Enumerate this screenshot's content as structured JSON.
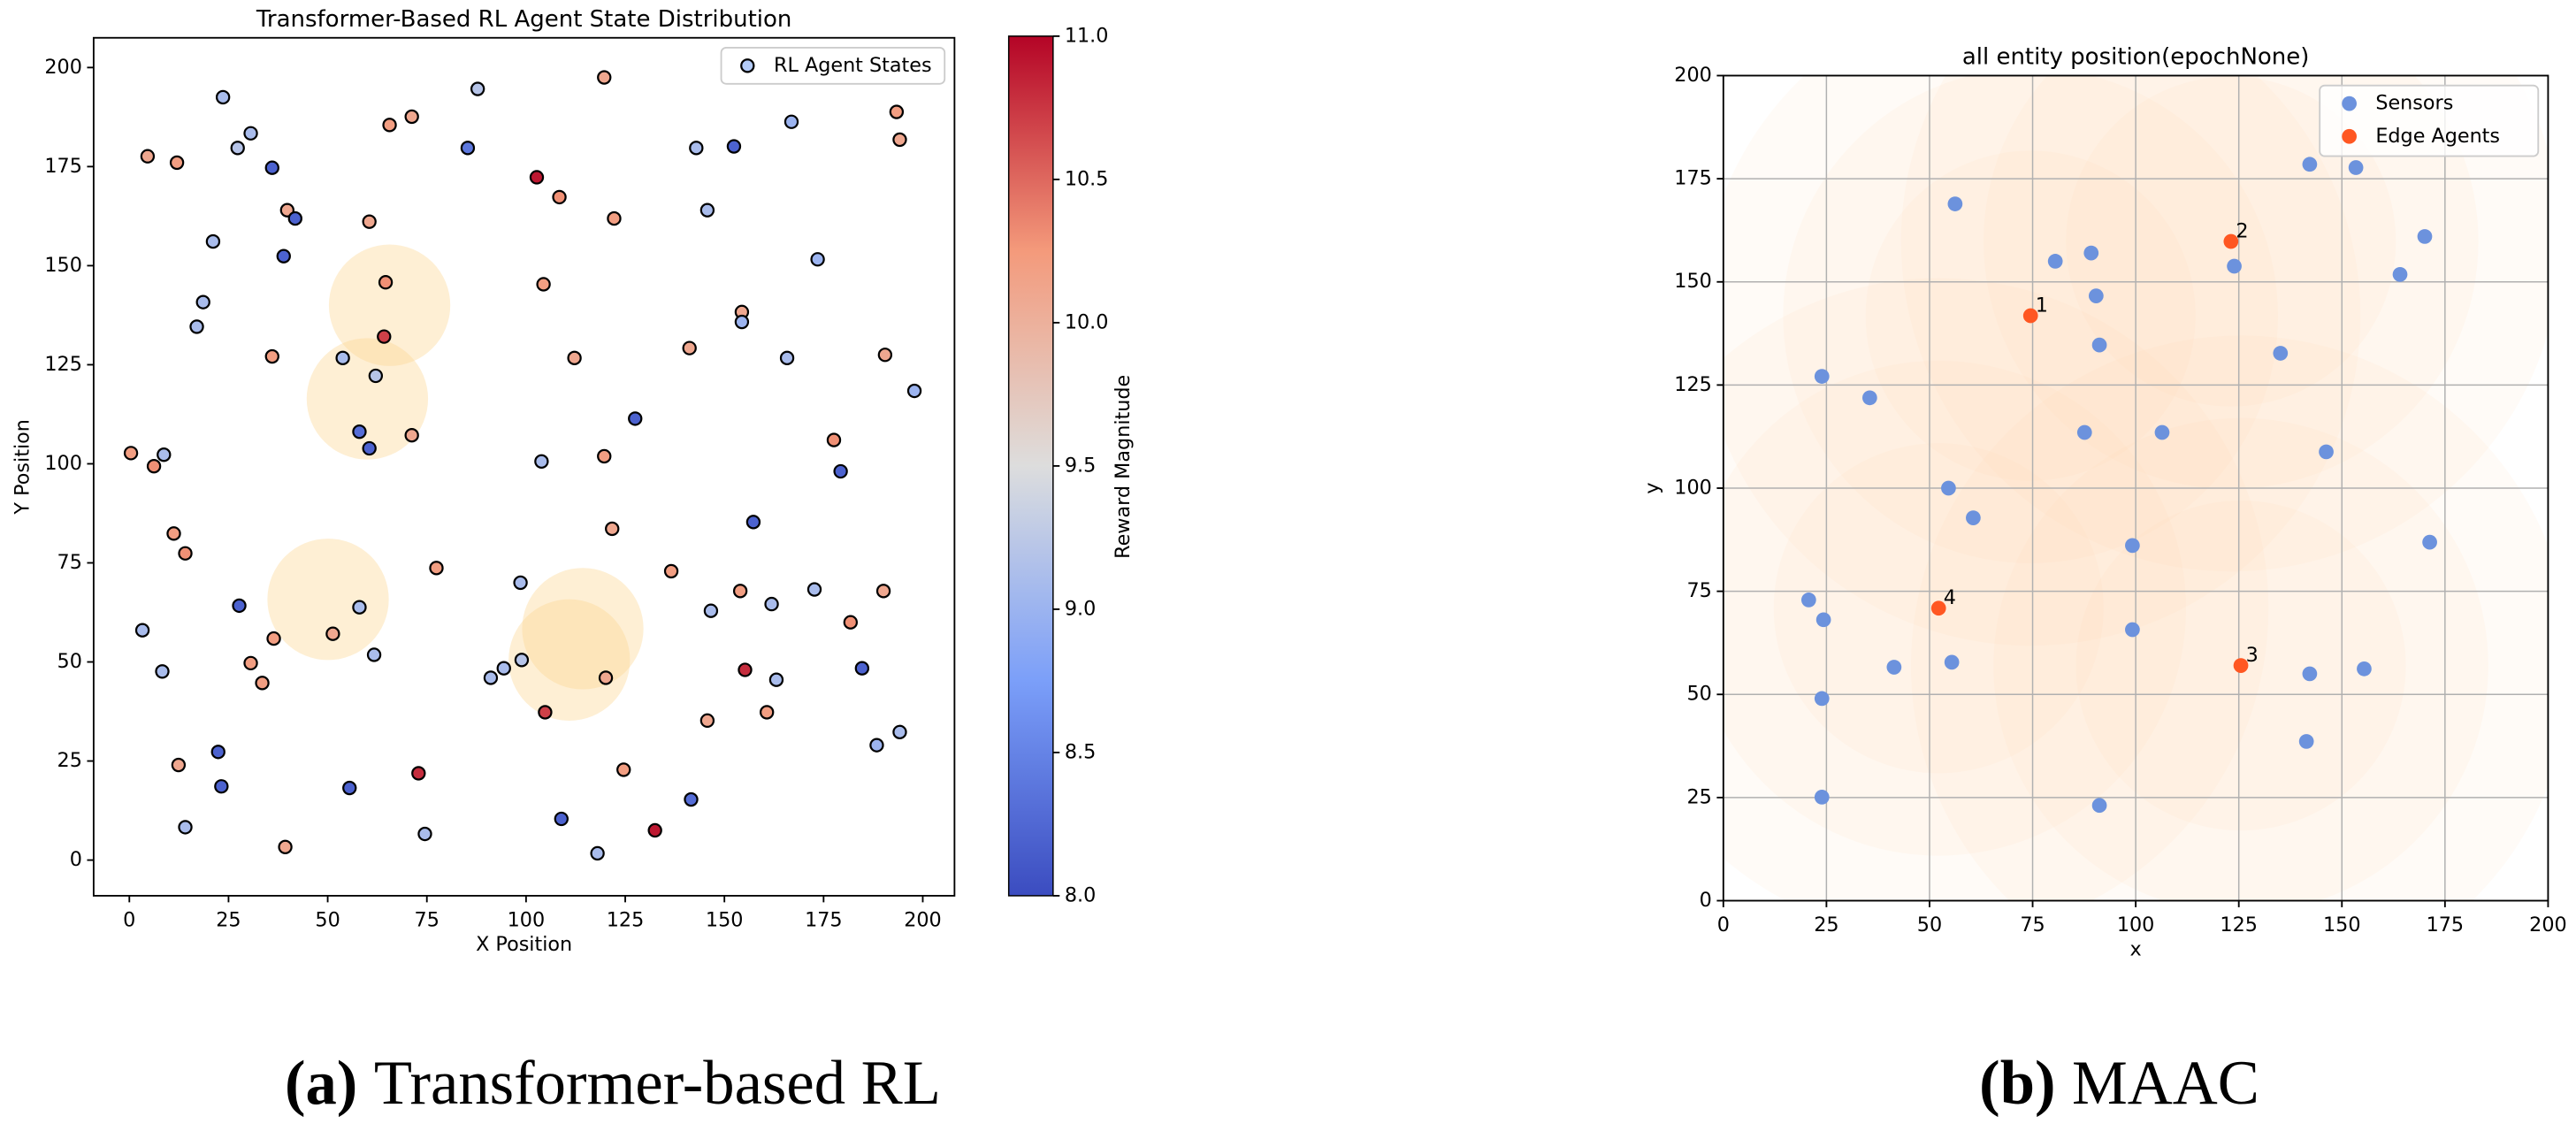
{
  "chart_data": [
    {
      "type": "scatter",
      "title": "Transformer-Based RL Agent State Distribution",
      "x_label": "X Position",
      "y_label": "Y Position",
      "xlim": [
        -9,
        208
      ],
      "ylim": [
        -9,
        207.5
      ],
      "xticks": [
        0,
        25,
        50,
        75,
        100,
        125,
        150,
        175,
        200
      ],
      "yticks": [
        0,
        25,
        50,
        75,
        100,
        125,
        150,
        175,
        200
      ],
      "grid": false,
      "legend": "upper right",
      "legend_label": "RL Agent States",
      "legend_marker_color": "#b3cbf7",
      "edge_color": "#000000",
      "x": [
        23.6,
        87.8,
        119.7,
        71.2,
        65.6,
        30.6,
        27.3,
        4.6,
        12.0,
        36,
        85.3,
        102.7,
        108.4,
        142.9,
        152.4,
        166.9,
        193.4,
        194.2,
        39.8,
        41.8,
        21.1,
        38.9,
        60.5,
        122.2,
        145.7,
        173.5,
        18.6,
        17,
        64.6,
        104.4,
        154.4,
        154.4,
        64.2,
        36,
        53.8,
        62.1,
        112.2,
        141.2,
        165.8,
        190.5,
        197.9,
        127.5,
        0.4,
        6.2,
        8.7,
        58,
        60.5,
        71.2,
        103.9,
        119.7,
        177.6,
        179.3,
        11.2,
        14.1,
        121.7,
        157.3,
        77.4,
        98.6,
        136.6,
        27.7,
        58,
        154,
        161.9,
        172.7,
        190.1,
        3.3,
        36.4,
        51.3,
        146.6,
        181.8,
        8.3,
        30.6,
        33.5,
        61.7,
        91.1,
        94.4,
        98.9,
        120.1,
        155.2,
        163.1,
        184.7,
        104.8,
        145.7,
        160.7,
        194.2,
        188.4,
        22.4,
        12.4,
        72.9,
        124.6,
        23.2,
        55.5,
        141.6,
        108.9,
        14.1,
        74.5,
        132.5,
        39.3,
        118
      ],
      "y": [
        192.5,
        194.6,
        197.5,
        187.6,
        185.5,
        183.4,
        179.7,
        177.6,
        176,
        174.7,
        179.7,
        172.3,
        167.3,
        179.7,
        180.1,
        186.3,
        188.8,
        181.8,
        164,
        161.9,
        156.1,
        152.4,
        161.1,
        161.9,
        164,
        151.6,
        140.8,
        134.6,
        145.8,
        145.3,
        138.3,
        135.8,
        132.1,
        127.1,
        126.7,
        122.2,
        126.7,
        129.2,
        126.7,
        127.5,
        118.4,
        111.4,
        102.7,
        99.4,
        102.3,
        108.1,
        103.9,
        107.2,
        100.6,
        101.9,
        106,
        98.1,
        82.4,
        77.4,
        83.6,
        85.3,
        73.7,
        70,
        72.9,
        64.2,
        63.8,
        67.9,
        64.6,
        68.3,
        67.9,
        58,
        55.9,
        57.1,
        62.9,
        60,
        47.6,
        49.7,
        44.7,
        51.8,
        46,
        48.4,
        50.5,
        46,
        48,
        45.5,
        48.4,
        37.3,
        35.2,
        37.3,
        32.3,
        29,
        27.3,
        24,
        21.9,
        22.8,
        18.6,
        18.2,
        15.3,
        10.4,
        8.3,
        6.6,
        7.5,
        3.3,
        1.7
      ],
      "color_values": [
        9.1,
        9.2,
        10.1,
        10.1,
        10.2,
        9.1,
        9.2,
        10.1,
        10.2,
        8.2,
        8.4,
        10.9,
        10.3,
        9.1,
        8.2,
        9.0,
        10.2,
        10.1,
        10.1,
        8.2,
        9.1,
        8.2,
        10.1,
        10.2,
        9.1,
        9.0,
        9.1,
        9.1,
        10.3,
        10.2,
        10.1,
        9.0,
        10.7,
        10.2,
        9.1,
        9.2,
        10.1,
        10.1,
        9.1,
        10.1,
        9.0,
        8.2,
        10.2,
        10.3,
        9.1,
        8.3,
        8.2,
        10.1,
        9.1,
        10.2,
        10.3,
        8.2,
        10.2,
        10.3,
        10.1,
        8.2,
        10.2,
        9.1,
        10.2,
        8.2,
        9.1,
        10.2,
        9.1,
        9.1,
        10.1,
        9.1,
        10.2,
        10.1,
        9.1,
        10.3,
        9.1,
        10.2,
        10.2,
        9.1,
        9.1,
        9.1,
        9.2,
        10.1,
        10.8,
        9.1,
        8.2,
        10.7,
        10.1,
        10.2,
        9.1,
        9.0,
        8.2,
        10.1,
        10.8,
        10.2,
        8.2,
        8.2,
        8.3,
        8.2,
        9.1,
        9.1,
        10.9,
        10.1,
        9.1
      ],
      "regions": {
        "x": [
          65.6,
          60,
          50.1,
          114.3,
          110.9
        ],
        "y": [
          140,
          116.4,
          65.8,
          58.4,
          50.5
        ],
        "r": [
          15.3,
          15.3,
          15.3,
          15.3,
          15.3
        ],
        "color": "#fcd694"
      },
      "colorbar": {
        "label": "Reward Magnitude",
        "cmap": "coolwarm",
        "clim": [
          8,
          11
        ],
        "ticks": [
          {
            "value": 8,
            "label": "8.0"
          },
          {
            "value": 8.5,
            "label": "8.5"
          },
          {
            "value": 9,
            "label": "9.0"
          },
          {
            "value": 9.5,
            "label": "9.5"
          },
          {
            "value": 10,
            "label": "10.0"
          },
          {
            "value": 10.5,
            "label": "10.5"
          },
          {
            "value": 11,
            "label": "11.0"
          }
        ]
      }
    },
    {
      "type": "scatter",
      "title": "all entity position(epochNone)",
      "x_label": "x",
      "y_label": "y",
      "xlim": [
        0,
        200
      ],
      "ylim": [
        0,
        200
      ],
      "xticks": [
        0,
        25,
        50,
        75,
        100,
        125,
        150,
        175,
        200
      ],
      "yticks": [
        0,
        25,
        50,
        75,
        100,
        125,
        150,
        175,
        200
      ],
      "grid": true,
      "legend": "upper right",
      "coverage_radii": [
        40,
        60,
        80
      ],
      "coverage_color": "#fdd0a2",
      "series": [
        {
          "name": "Sensors",
          "color": "#6c92dd",
          "x": [
            56.2,
            80.5,
            89.2,
            90.4,
            91.2,
            123.9,
            142.2,
            153.4,
            170.1,
            164.1,
            135.1,
            23.9,
            35.5,
            87.6,
            106.4,
            146.2,
            54.6,
            60.6,
            99.2,
            171.3,
            20.7,
            24.3,
            99.2,
            41.4,
            55.4,
            142.2,
            155.4,
            23.9,
            141.4,
            23.9,
            91.2
          ],
          "y": [
            168.9,
            155,
            157,
            146.6,
            134.7,
            153.8,
            178.5,
            177.7,
            161,
            151.8,
            132.7,
            127.1,
            121.9,
            113.5,
            113.5,
            108.8,
            100,
            92.8,
            86.1,
            86.9,
            72.9,
            68.1,
            65.7,
            56.6,
            57.8,
            55,
            56.2,
            49,
            38.6,
            25.1,
            23.1
          ]
        },
        {
          "name": "Edge Agents",
          "color": "#ff5722",
          "x": [
            74.5,
            123.1,
            125.5,
            52.2
          ],
          "y": [
            141.8,
            159.8,
            57,
            70.9
          ],
          "labels": [
            "1",
            "2",
            "3",
            "4"
          ]
        }
      ]
    }
  ],
  "captions": [
    {
      "tag": "(a)",
      "text": "Transformer-based RL"
    },
    {
      "tag": "(b)",
      "text": "MAAC"
    }
  ]
}
